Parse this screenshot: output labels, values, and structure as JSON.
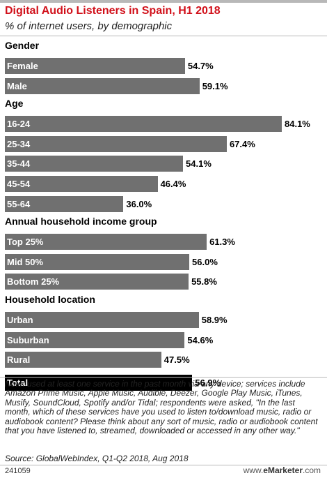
{
  "chart_data": {
    "type": "bar",
    "orientation": "horizontal",
    "title": "Digital Audio Listeners in Spain, H1 2018",
    "subtitle": "% of internet users, by demographic",
    "value_suffix": "%",
    "xlim": [
      0,
      84.1
    ],
    "groups": [
      {
        "name": "Gender",
        "categories": [
          "Female",
          "Male"
        ],
        "values": [
          54.7,
          59.1
        ]
      },
      {
        "name": "Age",
        "categories": [
          "16-24",
          "25-34",
          "35-44",
          "45-54",
          "55-64"
        ],
        "values": [
          84.1,
          67.4,
          54.1,
          46.4,
          36.0
        ]
      },
      {
        "name": "Annual household income group",
        "categories": [
          "Top 25%",
          "Mid 50%",
          "Bottom 25%"
        ],
        "values": [
          61.3,
          56.0,
          55.8
        ]
      },
      {
        "name": "Household location",
        "categories": [
          "Urban",
          "Suburban",
          "Rural"
        ],
        "values": [
          58.9,
          54.6,
          47.5
        ]
      },
      {
        "name": "",
        "categories": [
          "Total"
        ],
        "values": [
          56.9
        ],
        "highlight": true
      }
    ],
    "colors": {
      "bar": "#707070",
      "total_bar": "#000000",
      "title": "#d1101a"
    }
  },
  "note": "Note: used at least one service in the past month via any device; services include Amazon Prime Music, Apple Music, Audible, Deezer, Google Play Music, iTunes, Musify, SoundCloud, Spotify and/or Tidal; respondents were asked, \"In the last month, which of these services have you used to listen to/download music, radio or audiobook content? Please think about any sort of music, radio or audiobook content that you have listened to, streamed, downloaded or accessed in any other way.\"",
  "source": "Source: GlobalWebIndex, Q1-Q2 2018, Aug 2018",
  "footer": {
    "chart_id": "241059",
    "brand_prefix": "www.",
    "brand_name": "eMarketer",
    "brand_suffix": ".com"
  }
}
